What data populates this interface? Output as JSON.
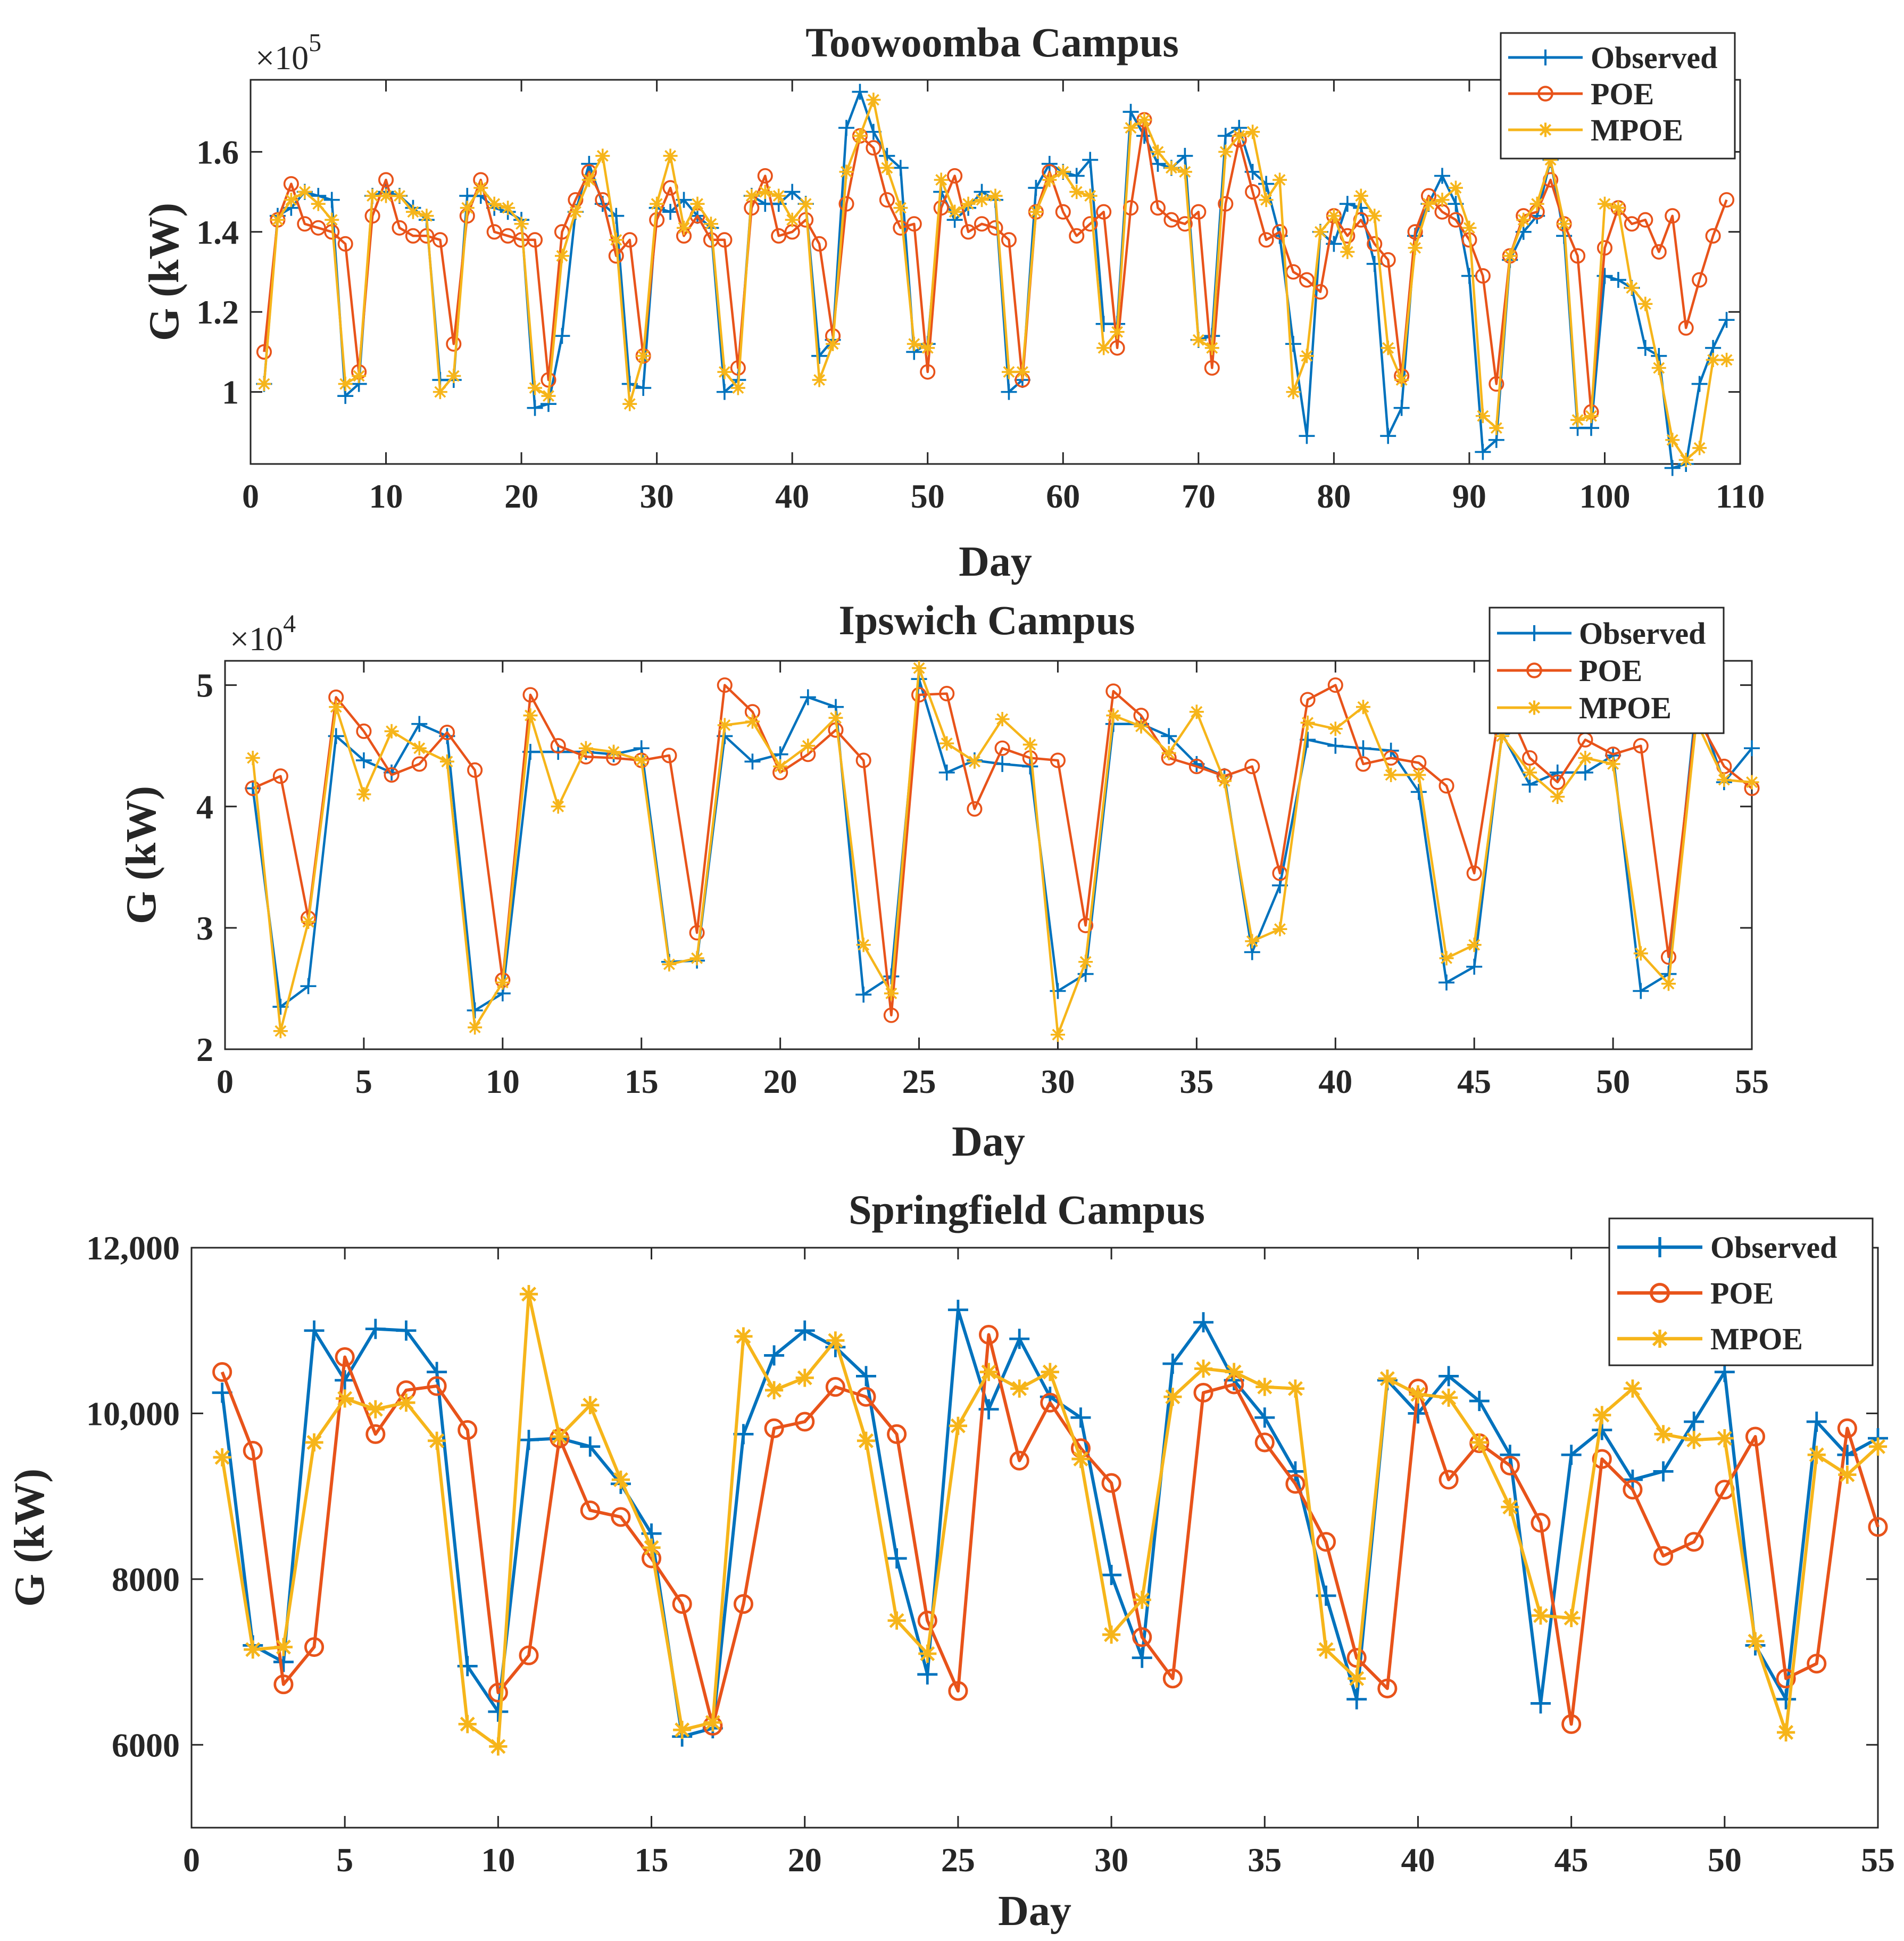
{
  "colors": {
    "observed": "#0072BD",
    "poe": "#E8531A",
    "mpoe": "#F6B51A",
    "axis": "#262626",
    "frame": "#262626"
  },
  "markers": {
    "observed": "plus",
    "poe": "circle",
    "mpoe": "asterisk"
  },
  "chart_data": [
    {
      "type": "line",
      "title": "Toowoomba Campus",
      "xlabel": "Day",
      "ylabel": "G (kW)",
      "y_multiplier": "×10",
      "y_exponent": "5",
      "xlim": [
        0,
        110
      ],
      "ylim": [
        0.82,
        1.78
      ],
      "xticks": [
        0,
        10,
        20,
        30,
        40,
        50,
        60,
        70,
        80,
        90,
        100,
        110
      ],
      "yticks": [
        1.0,
        1.2,
        1.4,
        1.6
      ],
      "ytick_labels": [
        "1",
        "1.2",
        "1.4",
        "1.6"
      ],
      "legend": [
        "Observed",
        "POE",
        "MPOE"
      ],
      "legend_position": "top-right",
      "series": [
        {
          "name": "Observed",
          "values": [
            1.02,
            1.44,
            1.46,
            1.5,
            1.49,
            1.48,
            0.99,
            1.02,
            1.49,
            1.5,
            1.49,
            1.46,
            1.43,
            1.03,
            1.03,
            1.49,
            1.49,
            1.46,
            1.45,
            1.43,
            0.96,
            0.97,
            1.14,
            1.45,
            1.57,
            1.47,
            1.44,
            1.02,
            1.01,
            1.46,
            1.45,
            1.48,
            1.44,
            1.41,
            1.0,
            1.03,
            1.49,
            1.47,
            1.47,
            1.5,
            1.47,
            1.09,
            1.13,
            1.66,
            1.75,
            1.65,
            1.59,
            1.56,
            1.1,
            1.12,
            1.5,
            1.43,
            1.46,
            1.5,
            1.48,
            1.0,
            1.03,
            1.51,
            1.57,
            1.55,
            1.54,
            1.58,
            1.17,
            1.17,
            1.7,
            1.64,
            1.57,
            1.56,
            1.59,
            1.13,
            1.14,
            1.64,
            1.66,
            1.55,
            1.52,
            1.39,
            1.12,
            0.89,
            1.4,
            1.37,
            1.47,
            1.46,
            1.32,
            0.89,
            0.96,
            1.39,
            1.47,
            1.54,
            1.47,
            1.29,
            0.85,
            0.88,
            1.33,
            1.4,
            1.44,
            1.58,
            1.39,
            0.91,
            0.91,
            1.29,
            1.28,
            1.26,
            1.11,
            1.09,
            0.81,
            0.82,
            1.02,
            1.11,
            1.18
          ]
        },
        {
          "name": "POE",
          "values": [
            1.1,
            1.43,
            1.52,
            1.42,
            1.41,
            1.4,
            1.37,
            1.05,
            1.44,
            1.53,
            1.41,
            1.39,
            1.39,
            1.38,
            1.12,
            1.44,
            1.53,
            1.4,
            1.39,
            1.38,
            1.38,
            1.03,
            1.4,
            1.48,
            1.55,
            1.48,
            1.34,
            1.38,
            1.09,
            1.43,
            1.51,
            1.39,
            1.44,
            1.38,
            1.38,
            1.06,
            1.46,
            1.54,
            1.39,
            1.4,
            1.43,
            1.37,
            1.14,
            1.47,
            1.64,
            1.61,
            1.48,
            1.41,
            1.42,
            1.05,
            1.46,
            1.54,
            1.4,
            1.42,
            1.41,
            1.38,
            1.03,
            1.45,
            1.55,
            1.45,
            1.39,
            1.42,
            1.45,
            1.11,
            1.46,
            1.68,
            1.46,
            1.43,
            1.42,
            1.45,
            1.06,
            1.47,
            1.63,
            1.5,
            1.38,
            1.4,
            1.3,
            1.28,
            1.25,
            1.44,
            1.39,
            1.43,
            1.37,
            1.33,
            1.04,
            1.4,
            1.49,
            1.45,
            1.43,
            1.38,
            1.29,
            1.02,
            1.34,
            1.44,
            1.45,
            1.53,
            1.42,
            1.34,
            0.95,
            1.36,
            1.46,
            1.42,
            1.43,
            1.35,
            1.44,
            1.16,
            1.28,
            1.39,
            1.48
          ]
        },
        {
          "name": "MPOE",
          "values": [
            1.02,
            1.43,
            1.48,
            1.5,
            1.47,
            1.43,
            1.02,
            1.04,
            1.49,
            1.49,
            1.49,
            1.45,
            1.44,
            1.0,
            1.04,
            1.46,
            1.51,
            1.47,
            1.46,
            1.42,
            1.01,
            0.99,
            1.34,
            1.45,
            1.53,
            1.59,
            1.38,
            0.97,
            1.09,
            1.47,
            1.59,
            1.41,
            1.47,
            1.42,
            1.05,
            1.01,
            1.49,
            1.5,
            1.49,
            1.43,
            1.47,
            1.03,
            1.12,
            1.55,
            1.64,
            1.73,
            1.56,
            1.46,
            1.12,
            1.11,
            1.53,
            1.45,
            1.47,
            1.48,
            1.49,
            1.05,
            1.05,
            1.45,
            1.53,
            1.55,
            1.5,
            1.49,
            1.11,
            1.15,
            1.66,
            1.68,
            1.6,
            1.56,
            1.55,
            1.13,
            1.11,
            1.6,
            1.64,
            1.65,
            1.48,
            1.53,
            1.0,
            1.09,
            1.4,
            1.44,
            1.35,
            1.49,
            1.44,
            1.11,
            1.03,
            1.36,
            1.47,
            1.48,
            1.51,
            1.41,
            0.94,
            0.91,
            1.34,
            1.43,
            1.47,
            1.58,
            1.42,
            0.93,
            0.94,
            1.47,
            1.46,
            1.26,
            1.22,
            1.06,
            0.88,
            0.83,
            0.86,
            1.08,
            1.08
          ]
        }
      ]
    },
    {
      "type": "line",
      "title": "Ipswich Campus",
      "xlabel": "Day",
      "ylabel": "G (kW)",
      "y_multiplier": "×10",
      "y_exponent": "4",
      "xlim": [
        0,
        55
      ],
      "ylim": [
        2.0,
        5.2
      ],
      "xticks": [
        0,
        5,
        10,
        15,
        20,
        25,
        30,
        35,
        40,
        45,
        50,
        55
      ],
      "yticks": [
        2,
        3,
        4,
        5
      ],
      "ytick_labels": [
        "2",
        "3",
        "4",
        "5"
      ],
      "legend": [
        "Observed",
        "POE",
        "MPOE"
      ],
      "legend_position": "top-right",
      "series": [
        {
          "name": "Observed",
          "values": [
            4.15,
            2.35,
            2.52,
            4.58,
            4.38,
            4.28,
            4.68,
            4.58,
            2.32,
            2.46,
            4.45,
            4.45,
            4.45,
            4.43,
            4.48,
            2.72,
            2.73,
            4.58,
            4.37,
            4.43,
            4.9,
            4.82,
            2.45,
            2.6,
            5.05,
            4.28,
            4.38,
            4.35,
            4.33,
            2.48,
            2.62,
            4.68,
            4.68,
            4.58,
            4.35,
            4.25,
            2.8,
            3.35,
            4.55,
            4.5,
            4.48,
            4.46,
            4.12,
            2.55,
            2.68,
            4.6,
            4.18,
            4.28,
            4.28,
            4.42,
            2.48,
            2.62,
            4.85,
            4.2,
            4.48
          ]
        },
        {
          "name": "POE",
          "values": [
            4.15,
            4.25,
            3.08,
            4.9,
            4.62,
            4.26,
            4.35,
            4.61,
            4.3,
            2.57,
            4.92,
            4.5,
            4.41,
            4.4,
            4.38,
            4.42,
            2.96,
            5.0,
            4.78,
            4.28,
            4.43,
            4.63,
            4.38,
            2.28,
            4.92,
            4.93,
            3.98,
            4.48,
            4.4,
            4.38,
            3.02,
            4.95,
            4.75,
            4.4,
            4.33,
            4.25,
            4.33,
            3.45,
            4.88,
            5.0,
            4.35,
            4.4,
            4.36,
            4.17,
            3.45,
            4.92,
            4.4,
            4.2,
            4.55,
            4.43,
            4.5,
            2.76,
            4.75,
            4.33,
            4.15
          ]
        },
        {
          "name": "MPOE",
          "values": [
            4.4,
            2.15,
            3.05,
            4.82,
            4.1,
            4.62,
            4.48,
            4.37,
            2.18,
            2.55,
            4.75,
            4.0,
            4.48,
            4.45,
            4.38,
            2.7,
            2.75,
            4.67,
            4.7,
            4.33,
            4.5,
            4.73,
            2.86,
            2.46,
            5.14,
            4.52,
            4.37,
            4.72,
            4.51,
            2.12,
            2.72,
            4.75,
            4.66,
            4.44,
            4.78,
            4.21,
            2.89,
            2.99,
            4.69,
            4.64,
            4.82,
            4.26,
            4.26,
            2.75,
            2.86,
            4.58,
            4.28,
            4.08,
            4.4,
            4.35,
            2.79,
            2.54,
            4.7,
            4.22,
            4.2
          ]
        }
      ]
    },
    {
      "type": "line",
      "title": "Springfield Campus",
      "xlabel": "Day",
      "ylabel": "G (kW)",
      "xlim": [
        0,
        55
      ],
      "ylim": [
        5000,
        12000
      ],
      "xticks": [
        0,
        5,
        10,
        15,
        20,
        25,
        30,
        35,
        40,
        45,
        50,
        55
      ],
      "yticks": [
        6000,
        8000,
        10000,
        12000
      ],
      "ytick_labels": [
        "6000",
        "8000",
        "10,000",
        "12,000"
      ],
      "legend": [
        "Observed",
        "POE",
        "MPOE"
      ],
      "legend_position": "top-right",
      "series": [
        {
          "name": "Observed",
          "values": [
            10250,
            7200,
            7000,
            11000,
            10400,
            11020,
            11000,
            10500,
            6950,
            6400,
            9680,
            9700,
            9600,
            9150,
            8550,
            6100,
            6200,
            9750,
            10700,
            11000,
            10800,
            10450,
            8250,
            6850,
            11250,
            10050,
            10900,
            10200,
            9950,
            8050,
            7050,
            10600,
            11100,
            10400,
            9950,
            9300,
            7800,
            6550,
            10400,
            10000,
            10450,
            10150,
            9500,
            6500,
            9500,
            9800,
            9200,
            9300,
            9900,
            10500,
            7200,
            6550,
            9900,
            9500,
            9700
          ]
        },
        {
          "name": "POE",
          "values": [
            10500,
            9550,
            6730,
            7180,
            10680,
            9750,
            10280,
            10330,
            9800,
            6630,
            7080,
            9700,
            8830,
            8750,
            8250,
            7700,
            6230,
            7700,
            9820,
            9900,
            10320,
            10200,
            9750,
            7500,
            6650,
            10950,
            9430,
            10130,
            9580,
            9160,
            7300,
            6800,
            10250,
            10350,
            9650,
            9150,
            8450,
            7050,
            6680,
            10300,
            9200,
            9640,
            9370,
            8680,
            6250,
            9450,
            9080,
            8280,
            8450,
            9080,
            9720,
            6800,
            6980,
            9820,
            8630
          ]
        },
        {
          "name": "MPOE",
          "values": [
            9470,
            7150,
            7180,
            9650,
            10180,
            10050,
            10130,
            9670,
            6250,
            5980,
            11440,
            9720,
            10100,
            9200,
            8380,
            6180,
            6270,
            10930,
            10280,
            10430,
            10880,
            9670,
            7500,
            7100,
            9850,
            10500,
            10300,
            10500,
            9450,
            7330,
            7750,
            10200,
            10540,
            10500,
            10320,
            10300,
            7150,
            6800,
            10420,
            10230,
            10190,
            9650,
            8870,
            7560,
            7530,
            9980,
            10300,
            9750,
            9680,
            9700,
            7250,
            6150,
            9500,
            9260,
            9600
          ]
        }
      ]
    }
  ]
}
